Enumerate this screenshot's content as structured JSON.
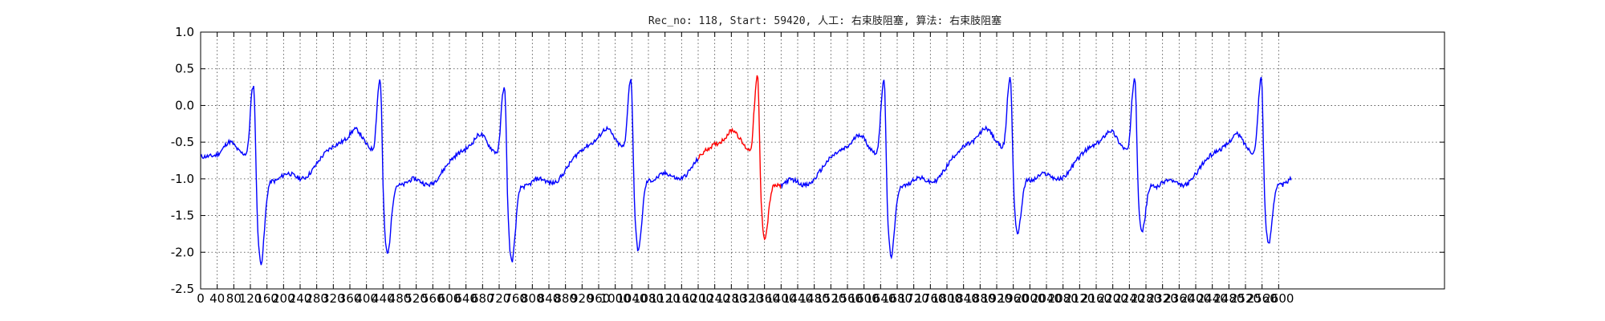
{
  "chart_data": {
    "type": "line",
    "title": "Rec_no: 118, Start: 59420, 人工: 右束肢阻塞, 算法: 右束肢阻塞",
    "xlabel": "",
    "ylabel": "",
    "xlim": [
      0,
      3000
    ],
    "ylim": [
      -2.5,
      1.0
    ],
    "grid": true,
    "yticks": [
      "1.0",
      "0.5",
      "0.0",
      "-0.5",
      "-1.0",
      "-1.5",
      "-2.0",
      "-2.5"
    ],
    "xticks": [
      "0",
      "40",
      "80",
      "120",
      "160",
      "200",
      "240",
      "280",
      "320",
      "360",
      "400",
      "440",
      "480",
      "520",
      "560",
      "600",
      "640",
      "680",
      "720",
      "760",
      "800",
      "840",
      "880",
      "920",
      "960",
      "1000",
      "1040",
      "1080",
      "1120",
      "1160",
      "1200",
      "1240",
      "1280",
      "1320",
      "1360",
      "1400",
      "1440",
      "1480",
      "1520",
      "1560",
      "1600",
      "1640",
      "1680",
      "1720",
      "1760",
      "1800",
      "1840",
      "1880",
      "1920",
      "1960",
      "2000",
      "2040",
      "2080",
      "2120",
      "2160",
      "2200",
      "2240",
      "2280",
      "2320",
      "2360",
      "2400",
      "2440",
      "2480",
      "2520",
      "2560",
      "2600"
    ],
    "series_colors": {
      "normal": "#0000ff",
      "highlight": "#ff0000"
    },
    "beat_peaks_x": [
      130,
      435,
      735,
      1040,
      1345,
      1650,
      1955,
      2255,
      2560
    ],
    "highlight_range_x": [
      1200,
      1400
    ],
    "signal_end_x": 2630
  }
}
